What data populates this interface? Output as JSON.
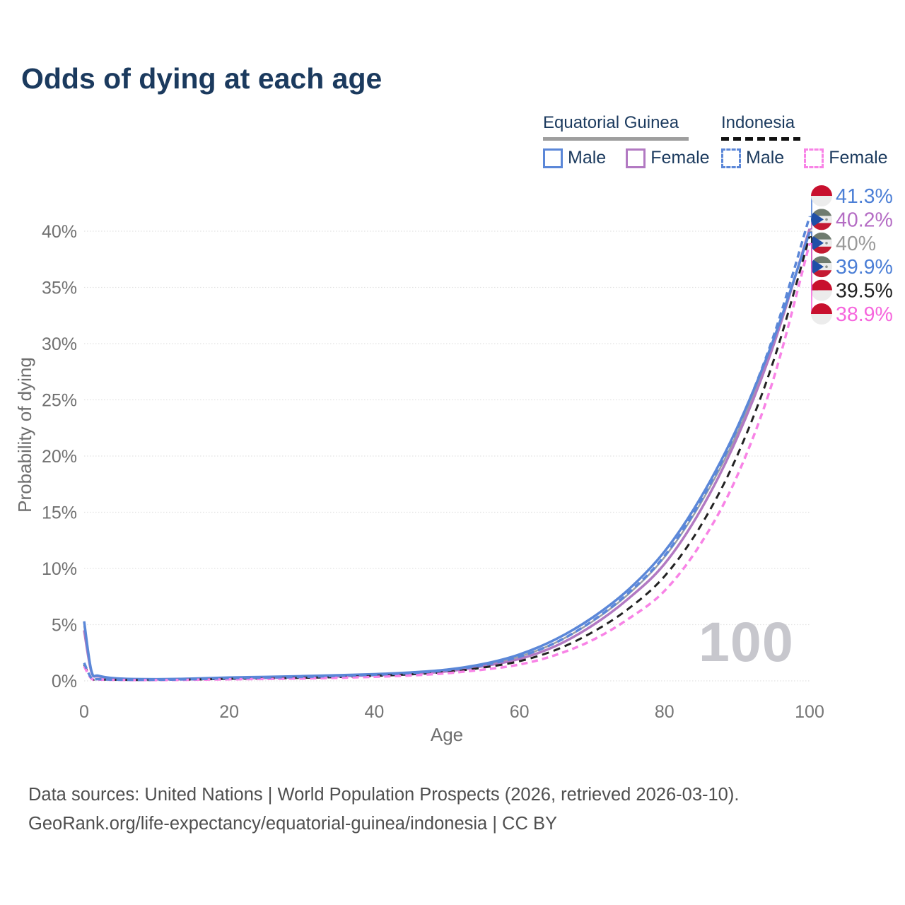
{
  "header": {
    "title": "Odds of dying at each age"
  },
  "legend": {
    "groups": [
      {
        "label": "Equatorial Guinea",
        "line_style": "solid",
        "underline_color": "#9e9e9e",
        "items": [
          {
            "label": "Male",
            "color": "#5b87d8"
          },
          {
            "label": "Female",
            "color": "#b279c2"
          }
        ]
      },
      {
        "label": "Indonesia",
        "line_style": "dashed",
        "underline_color": "#111111",
        "items": [
          {
            "label": "Male",
            "color": "#5b87d8"
          },
          {
            "label": "Female",
            "color": "#f883e6"
          }
        ]
      }
    ]
  },
  "chart_data": {
    "type": "line",
    "title": "Odds of dying at each age",
    "xlabel": "Age",
    "ylabel": "Probability of dying",
    "xlim": [
      0,
      100
    ],
    "ylim": [
      0,
      43
    ],
    "grid": "horizontal-dotted",
    "xticks": [
      0,
      20,
      40,
      60,
      80,
      100
    ],
    "yticks": [
      0,
      5,
      10,
      15,
      20,
      25,
      30,
      35,
      40
    ],
    "ytick_suffix": "%",
    "age_watermark": "100",
    "ages": [
      0,
      1,
      2,
      5,
      10,
      15,
      20,
      25,
      30,
      35,
      40,
      45,
      50,
      55,
      60,
      65,
      70,
      75,
      80,
      85,
      90,
      95,
      100
    ],
    "series": [
      {
        "name": "equatorial-guinea-both",
        "country": "Equatorial Guinea",
        "sex": "Both sexes",
        "color": "#9aa0a6",
        "dash": "",
        "width": 2.5,
        "values": [
          4.9,
          0.85,
          0.42,
          0.19,
          0.14,
          0.18,
          0.26,
          0.3,
          0.37,
          0.45,
          0.55,
          0.68,
          0.92,
          1.4,
          2.15,
          3.4,
          5.25,
          7.7,
          11.0,
          15.8,
          22.0,
          30.0,
          40.0
        ]
      },
      {
        "name": "equatorial-guinea-female",
        "country": "Equatorial Guinea",
        "sex": "Female",
        "color": "#b279c2",
        "dash": "",
        "width": 3.5,
        "values": [
          4.5,
          0.8,
          0.4,
          0.18,
          0.13,
          0.16,
          0.22,
          0.26,
          0.32,
          0.4,
          0.5,
          0.62,
          0.85,
          1.3,
          1.95,
          3.1,
          4.9,
          7.3,
          10.4,
          15.2,
          21.6,
          29.8,
          40.2
        ]
      },
      {
        "name": "equatorial-guinea-male",
        "country": "Equatorial Guinea",
        "sex": "Male",
        "color": "#5b87d8",
        "dash": "",
        "width": 3.5,
        "values": [
          5.3,
          0.9,
          0.45,
          0.2,
          0.15,
          0.2,
          0.3,
          0.35,
          0.42,
          0.5,
          0.6,
          0.75,
          1.0,
          1.5,
          2.35,
          3.7,
          5.6,
          8.1,
          11.5,
          16.3,
          22.5,
          30.3,
          39.9
        ]
      },
      {
        "name": "indonesia-both",
        "country": "Indonesia",
        "sex": "Both sexes",
        "color": "#222222",
        "dash": "10 7",
        "width": 3,
        "values": [
          1.45,
          0.22,
          0.13,
          0.09,
          0.08,
          0.12,
          0.18,
          0.22,
          0.27,
          0.34,
          0.44,
          0.58,
          0.8,
          1.18,
          1.75,
          2.75,
          4.3,
          6.4,
          9.3,
          13.8,
          20.0,
          28.4,
          39.5
        ]
      },
      {
        "name": "indonesia-female",
        "country": "Indonesia",
        "sex": "Female",
        "color": "#f883e6",
        "dash": "9 6",
        "width": 3.5,
        "values": [
          1.3,
          0.2,
          0.12,
          0.08,
          0.07,
          0.1,
          0.14,
          0.17,
          0.21,
          0.27,
          0.36,
          0.48,
          0.68,
          1.0,
          1.45,
          2.3,
          3.6,
          5.5,
          8.0,
          12.2,
          18.2,
          26.8,
          38.9
        ]
      },
      {
        "name": "indonesia-male",
        "country": "Indonesia",
        "sex": "Male",
        "color": "#5b87d8",
        "dash": "9 6",
        "width": 3.5,
        "values": [
          1.6,
          0.25,
          0.15,
          0.1,
          0.1,
          0.15,
          0.25,
          0.3,
          0.35,
          0.45,
          0.55,
          0.7,
          0.95,
          1.4,
          2.15,
          3.4,
          5.3,
          7.8,
          11.1,
          16.0,
          22.4,
          30.6,
          41.3
        ]
      }
    ],
    "end_labels": [
      {
        "text": "41.3%",
        "value": 41.3,
        "series": "indonesia-male",
        "flag": "indonesia",
        "color": "#4c7fd6"
      },
      {
        "text": "40.2%",
        "value": 40.2,
        "series": "equatorial-guinea-female",
        "flag": "equatorial-guinea",
        "color": "#b46cc4"
      },
      {
        "text": "40%",
        "value": 40.0,
        "series": "equatorial-guinea-both",
        "flag": "equatorial-guinea",
        "color": "#9a9a9a"
      },
      {
        "text": "39.9%",
        "value": 39.9,
        "series": "equatorial-guinea-male",
        "flag": "equatorial-guinea",
        "color": "#4c7fd6"
      },
      {
        "text": "39.5%",
        "value": 39.5,
        "series": "indonesia-both",
        "flag": "indonesia",
        "color": "#222222"
      },
      {
        "text": "38.9%",
        "value": 38.9,
        "series": "indonesia-female",
        "flag": "indonesia",
        "color": "#f666dd"
      }
    ]
  },
  "footer": {
    "line1": "Data sources: United Nations | World Population Prospects (2026, retrieved 2026-03-10).",
    "line2": "GeoRank.org/life-expectancy/equatorial-guinea/indonesia | CC BY"
  }
}
